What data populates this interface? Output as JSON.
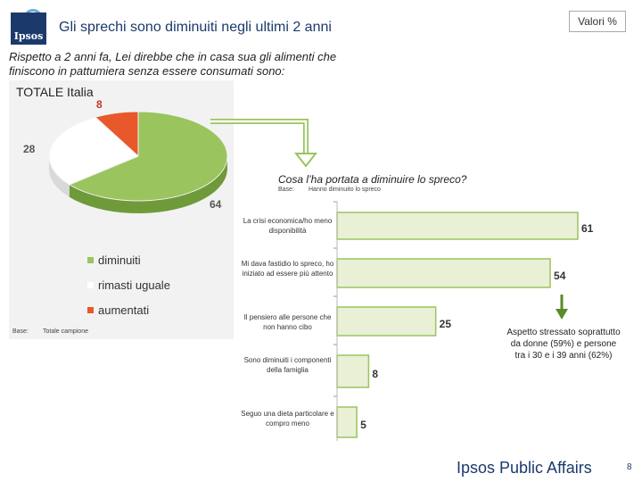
{
  "header": {
    "logo_text": "Ipsos",
    "title": "Gli sprechi sono diminuiti negli ultimi 2 anni",
    "units_box": "Valori %"
  },
  "question": "Rispetto a 2 anni fa, Lei direbbe che in casa sua gli alimenti che finiscono in pattumiera senza essere consumati sono:",
  "chart_data": [
    {
      "type": "pie",
      "title": "TOTALE Italia",
      "categories": [
        "diminuiti",
        "rimasti uguale",
        "aumentati"
      ],
      "values": [
        64,
        28,
        8
      ],
      "colors": [
        "#9ac45e",
        "#ffffff",
        "#e8582a"
      ],
      "base_label": "Base:",
      "base_value": "Totale campione",
      "legend_position": "bottom-left"
    },
    {
      "type": "bar",
      "orientation": "horizontal",
      "title": "Cosa l’ha portata a diminuire lo spreco?",
      "base_label": "Base:",
      "base_value": "Hanno diminuito lo spreco",
      "categories": [
        "La crisi economica/ho meno disponibilità",
        "Mi dava fastidio lo spreco, ho iniziato ad essere più attento",
        "Il pensiero alle persone che non hanno cibo",
        "Sono diminuiti i componenti della famiglia",
        "Seguo una dieta particolare e compro meno"
      ],
      "values": [
        61,
        54,
        25,
        8,
        5
      ],
      "xlim": [
        0,
        61
      ],
      "bar_color": "#e9f0d6",
      "bar_border": "#9ac45e"
    }
  ],
  "note": "Aspetto stressato soprattutto da donne (59%) e persone tra i 30 e i 39 anni (62%)",
  "footer": {
    "brand": "Ipsos Public Affairs",
    "page_number": "8"
  }
}
